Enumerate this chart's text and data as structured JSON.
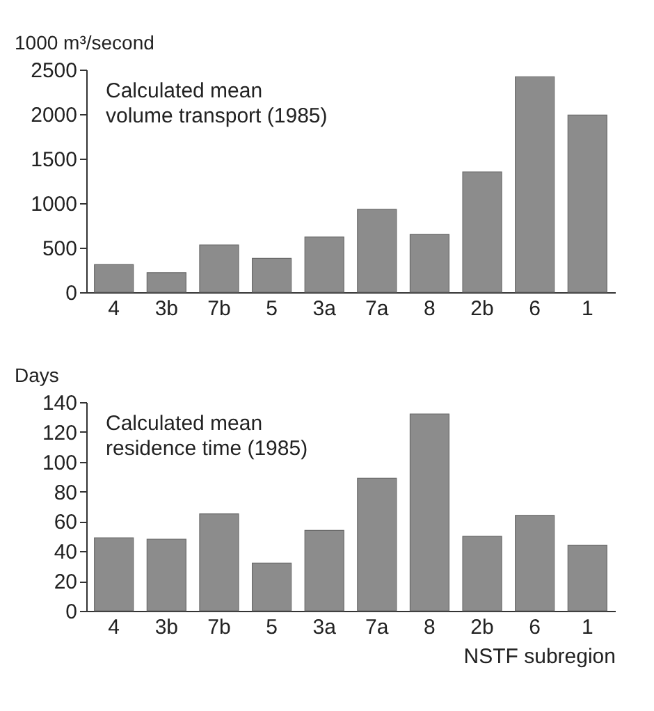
{
  "chart_data": [
    {
      "type": "bar",
      "ylabel": "1000 m³/second",
      "annotations": [
        "Calculated mean\nvolume transport (1985)"
      ],
      "categories": [
        "4",
        "3b",
        "7b",
        "5",
        "3a",
        "7a",
        "8",
        "2b",
        "6",
        "1"
      ],
      "series": [
        {
          "color": "#8c8c8c",
          "values": [
            310,
            220,
            530,
            380,
            620,
            930,
            650,
            1350,
            2420,
            1990
          ]
        }
      ],
      "ylim": [
        0,
        2500
      ],
      "yticks": [
        0,
        500,
        1000,
        1500,
        2000,
        2500
      ],
      "grid": false
    },
    {
      "type": "bar",
      "ylabel": "Days",
      "xlabel": "NSTF subregion",
      "annotations": [
        "Calculated mean\nresidence time (1985)"
      ],
      "categories": [
        "4",
        "3b",
        "7b",
        "5",
        "3a",
        "7a",
        "8",
        "2b",
        "6",
        "1"
      ],
      "series": [
        {
          "color": "#8c8c8c",
          "values": [
            49,
            48,
            65,
            32,
            54,
            89,
            132,
            50,
            64,
            44
          ]
        }
      ],
      "ylim": [
        0,
        140
      ],
      "yticks": [
        0,
        20,
        40,
        60,
        80,
        100,
        120,
        140
      ],
      "grid": false
    }
  ]
}
